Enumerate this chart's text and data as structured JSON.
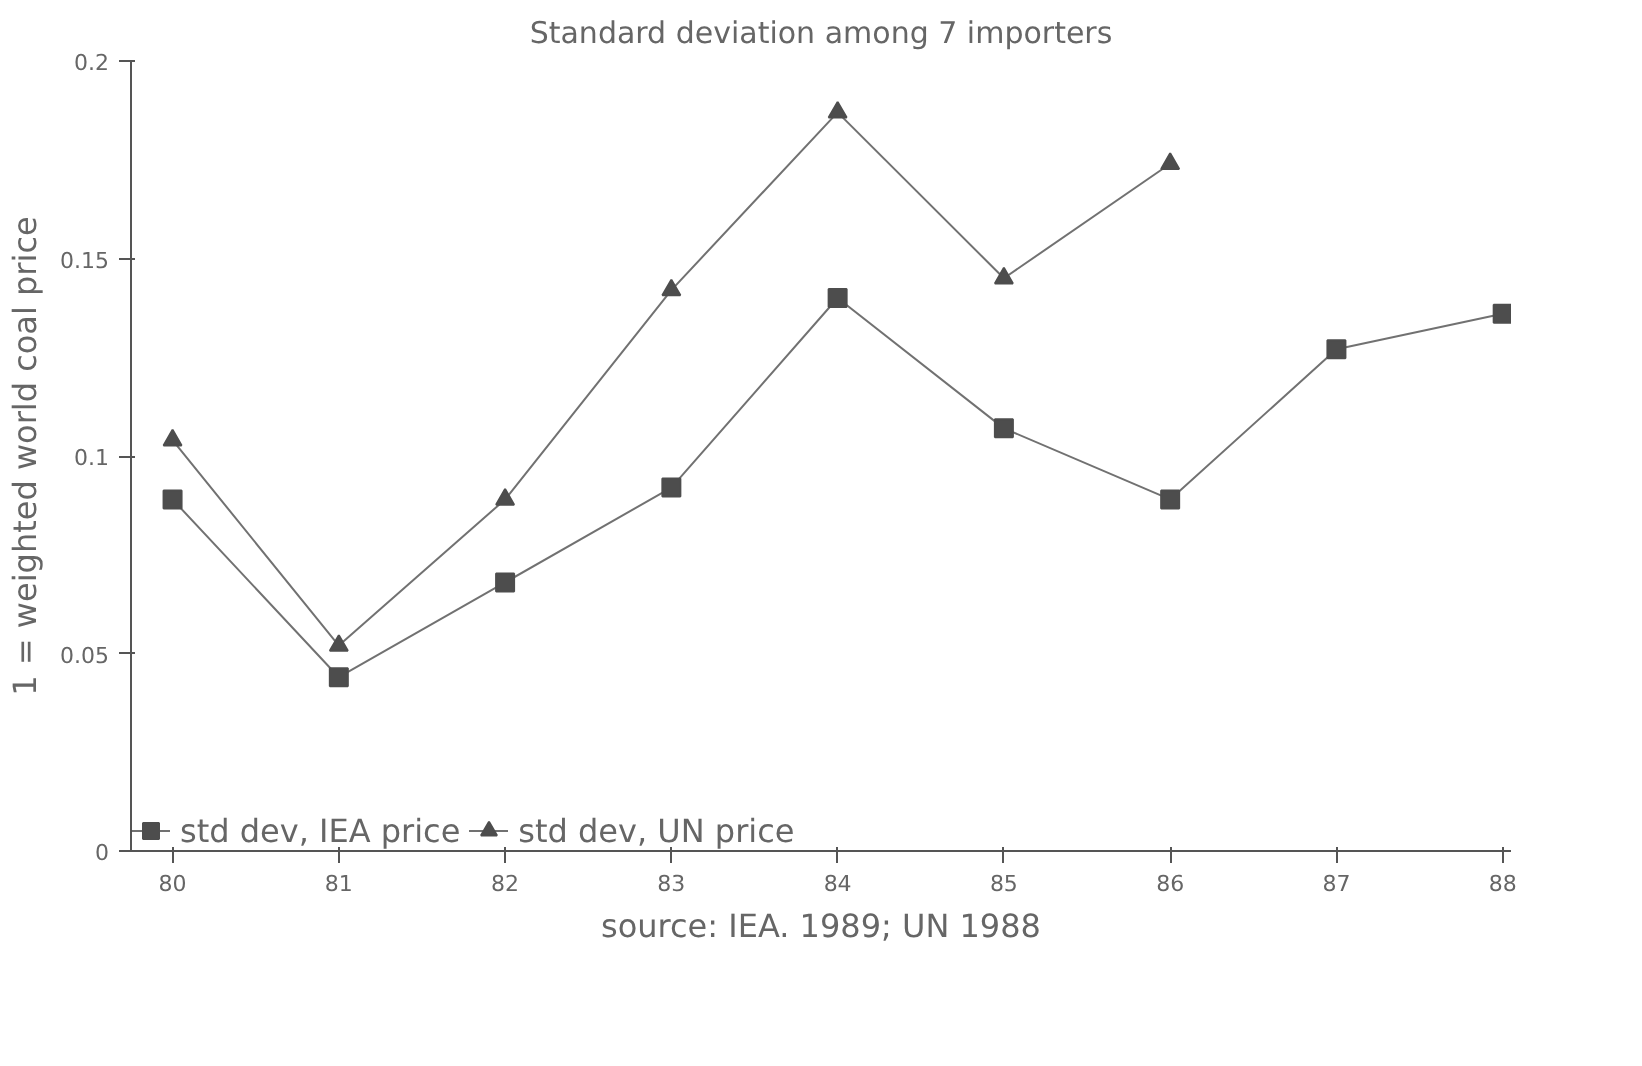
{
  "chart_data": {
    "type": "line",
    "title": "Standard deviation among 7 importers",
    "xlabel": "source: IEA. 1989; UN 1988",
    "ylabel": "1 = weighted world coal price",
    "x": [
      80,
      81,
      82,
      83,
      84,
      85,
      86,
      87,
      88
    ],
    "series": [
      {
        "name": "std dev, IEA price",
        "color": "#4d4d4d",
        "marker": "square",
        "values": [
          0.089,
          0.044,
          0.068,
          0.092,
          0.14,
          0.107,
          0.089,
          0.127,
          0.136
        ]
      },
      {
        "name": "std dev, UN price",
        "color": "#4d4d4d",
        "marker": "triangle",
        "values": [
          0.104,
          0.052,
          0.089,
          0.142,
          0.187,
          0.145,
          0.174,
          null,
          null
        ]
      }
    ],
    "xlim": [
      79.75,
      88.05
    ],
    "ylim": [
      0,
      0.2
    ],
    "xticks": [
      80,
      81,
      82,
      83,
      84,
      85,
      86,
      87,
      88
    ],
    "yticks": [
      0,
      0.05,
      0.1,
      0.15,
      0.2
    ],
    "grid": false,
    "legend": "bottom left",
    "line_style": "solid"
  }
}
